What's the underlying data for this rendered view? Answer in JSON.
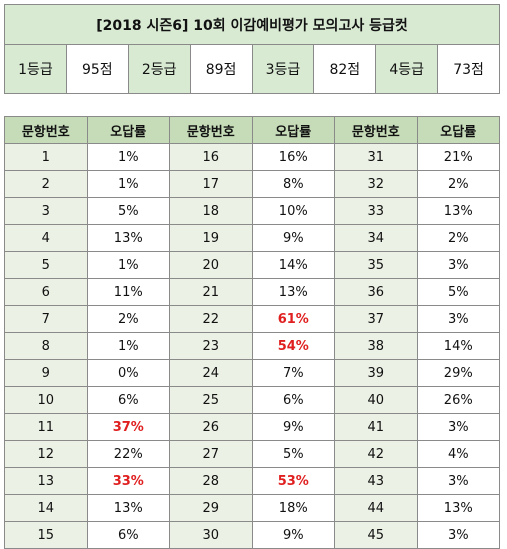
{
  "title": "[2018 시즌6] 10회 이감예비평가 모의고사 등급컷",
  "grades": [
    {
      "label": "1등급",
      "score": "95점"
    },
    {
      "label": "2등급",
      "score": "89점"
    },
    {
      "label": "3등급",
      "score": "82점"
    },
    {
      "label": "4등급",
      "score": "73점"
    }
  ],
  "headers": {
    "number": "문항번호",
    "rate": "오답률"
  },
  "questions": [
    {
      "n": "1",
      "r": "1%"
    },
    {
      "n": "2",
      "r": "1%"
    },
    {
      "n": "3",
      "r": "5%"
    },
    {
      "n": "4",
      "r": "13%"
    },
    {
      "n": "5",
      "r": "1%"
    },
    {
      "n": "6",
      "r": "11%"
    },
    {
      "n": "7",
      "r": "2%"
    },
    {
      "n": "8",
      "r": "1%"
    },
    {
      "n": "9",
      "r": "0%"
    },
    {
      "n": "10",
      "r": "6%"
    },
    {
      "n": "11",
      "r": "37%",
      "highlight": true
    },
    {
      "n": "12",
      "r": "22%"
    },
    {
      "n": "13",
      "r": "33%",
      "highlight": true
    },
    {
      "n": "14",
      "r": "13%"
    },
    {
      "n": "15",
      "r": "6%"
    },
    {
      "n": "16",
      "r": "16%"
    },
    {
      "n": "17",
      "r": "8%"
    },
    {
      "n": "18",
      "r": "10%"
    },
    {
      "n": "19",
      "r": "9%"
    },
    {
      "n": "20",
      "r": "14%"
    },
    {
      "n": "21",
      "r": "13%"
    },
    {
      "n": "22",
      "r": "61%",
      "highlight": true
    },
    {
      "n": "23",
      "r": "54%",
      "highlight": true
    },
    {
      "n": "24",
      "r": "7%"
    },
    {
      "n": "25",
      "r": "6%"
    },
    {
      "n": "26",
      "r": "9%"
    },
    {
      "n": "27",
      "r": "5%"
    },
    {
      "n": "28",
      "r": "53%",
      "highlight": true
    },
    {
      "n": "29",
      "r": "18%"
    },
    {
      "n": "30",
      "r": "9%"
    },
    {
      "n": "31",
      "r": "21%"
    },
    {
      "n": "32",
      "r": "2%"
    },
    {
      "n": "33",
      "r": "13%"
    },
    {
      "n": "34",
      "r": "2%"
    },
    {
      "n": "35",
      "r": "3%"
    },
    {
      "n": "36",
      "r": "5%"
    },
    {
      "n": "37",
      "r": "3%"
    },
    {
      "n": "38",
      "r": "14%"
    },
    {
      "n": "39",
      "r": "29%"
    },
    {
      "n": "40",
      "r": "26%"
    },
    {
      "n": "41",
      "r": "3%"
    },
    {
      "n": "42",
      "r": "4%"
    },
    {
      "n": "43",
      "r": "3%"
    },
    {
      "n": "44",
      "r": "13%"
    },
    {
      "n": "45",
      "r": "3%"
    }
  ],
  "colors": {
    "header_green": "#c6dcb8",
    "light_green": "#ebf1e5",
    "highlight_red": "#e02020"
  }
}
